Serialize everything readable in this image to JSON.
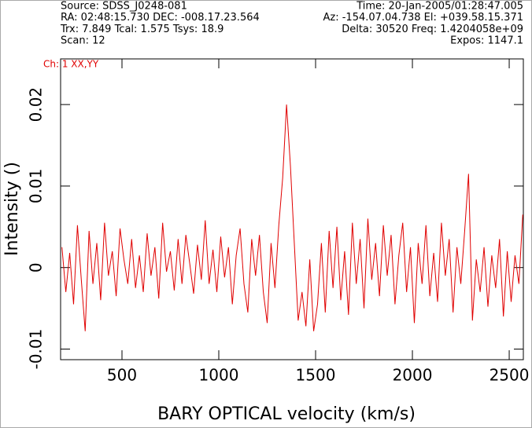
{
  "header": {
    "left": [
      "Source: SDSS_J0248-081",
      "RA: 02:48:15.730 DEC: -008.17.23.564",
      "Trx: 7.849 Tcal: 1.575 Tsys: 18.9",
      "Scan: 12"
    ],
    "right": [
      "Time: 20-Jan-2005/01:28:47.005",
      "Az: -154.07.04.738 El: +039.58.15.371",
      "Delta: 30520 Freq: 1.4204058e+09",
      "Expos: 1147.1"
    ]
  },
  "chart_data": {
    "type": "line",
    "channel_label": "Ch: 1 XX,YY",
    "xlabel": "BARY OPTICAL velocity (km/s)",
    "ylabel": "Intensity ()",
    "color": "#e00000",
    "xlim": [
      183,
      2573
    ],
    "ylim": [
      -0.0113,
      0.0256
    ],
    "xticks": [
      500,
      1000,
      1500,
      2000,
      2500
    ],
    "yticks": [
      -0.01,
      0,
      0.01,
      0.02
    ],
    "x": [
      190,
      210,
      230,
      250,
      270,
      290,
      310,
      330,
      350,
      370,
      390,
      410,
      430,
      450,
      470,
      490,
      510,
      530,
      550,
      570,
      590,
      610,
      630,
      650,
      670,
      690,
      710,
      730,
      750,
      770,
      790,
      810,
      830,
      850,
      870,
      890,
      910,
      930,
      950,
      970,
      990,
      1010,
      1030,
      1050,
      1070,
      1090,
      1110,
      1130,
      1150,
      1170,
      1190,
      1210,
      1230,
      1250,
      1270,
      1290,
      1310,
      1330,
      1350,
      1370,
      1390,
      1410,
      1430,
      1450,
      1470,
      1490,
      1510,
      1530,
      1550,
      1570,
      1590,
      1610,
      1630,
      1650,
      1670,
      1690,
      1710,
      1730,
      1750,
      1770,
      1790,
      1810,
      1830,
      1850,
      1870,
      1890,
      1910,
      1930,
      1950,
      1970,
      1990,
      2010,
      2030,
      2050,
      2070,
      2090,
      2110,
      2130,
      2150,
      2170,
      2190,
      2210,
      2230,
      2250,
      2270,
      2290,
      2310,
      2330,
      2350,
      2370,
      2390,
      2410,
      2430,
      2450,
      2470,
      2490,
      2510,
      2530,
      2550,
      2570
    ],
    "values": [
      0.0025,
      -0.003,
      0.0018,
      -0.0045,
      0.0052,
      -0.0015,
      -0.0078,
      0.0045,
      -0.002,
      0.003,
      -0.004,
      0.0055,
      -0.001,
      0.002,
      -0.0035,
      0.0048,
      0.001,
      -0.002,
      0.0035,
      -0.0025,
      0.0015,
      -0.003,
      0.0042,
      -0.001,
      0.0025,
      -0.0038,
      0.0055,
      -0.0005,
      0.002,
      -0.0028,
      0.0035,
      -0.002,
      0.004,
      0.0005,
      -0.0032,
      0.0028,
      -0.0015,
      0.0058,
      -0.002,
      0.0022,
      -0.003,
      0.0038,
      -0.0012,
      0.0025,
      -0.0045,
      0.0015,
      0.0048,
      -0.002,
      -0.0055,
      0.0035,
      -0.001,
      0.004,
      -0.003,
      -0.0068,
      0.003,
      -0.0025,
      0.0052,
      0.011,
      0.02,
      0.0125,
      0.003,
      -0.0065,
      -0.003,
      -0.0072,
      0.001,
      -0.0078,
      -0.0045,
      0.003,
      -0.0055,
      0.0045,
      -0.0025,
      0.005,
      -0.004,
      0.002,
      -0.0058,
      0.0055,
      -0.002,
      0.0035,
      -0.005,
      0.006,
      -0.0015,
      0.003,
      -0.0035,
      0.0052,
      -0.001,
      0.004,
      -0.0045,
      0.0015,
      0.0055,
      -0.003,
      0.0025,
      -0.0068,
      0.003,
      -0.002,
      0.0052,
      -0.0035,
      0.0018,
      -0.0042,
      0.0055,
      -0.001,
      0.0035,
      -0.0055,
      0.0025,
      -0.002,
      0.0045,
      0.0115,
      -0.0065,
      0.001,
      -0.003,
      0.0025,
      -0.0048,
      0.0015,
      -0.0025,
      0.0035,
      -0.006,
      0.002,
      -0.0042,
      0.0015,
      -0.002,
      0.0065
    ]
  }
}
